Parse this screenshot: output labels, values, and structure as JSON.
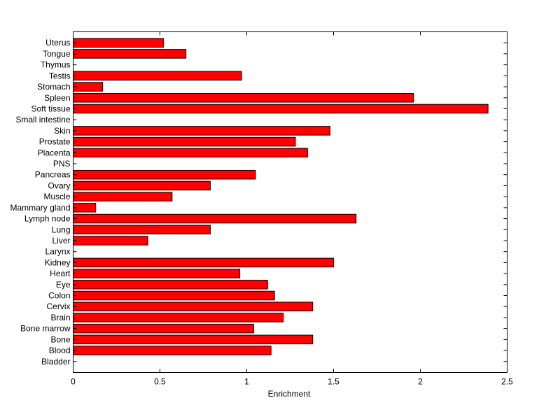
{
  "chart_data": {
    "type": "bar",
    "orientation": "horizontal",
    "title": "",
    "xlabel": "Enrichment",
    "ylabel": "",
    "xlim": [
      0,
      2.5
    ],
    "xticks": [
      "0",
      "0.5",
      "1",
      "1.5",
      "2",
      "2.5"
    ],
    "grid": false,
    "categories": [
      "Bladder",
      "Blood",
      "Bone",
      "Bone marrow",
      "Brain",
      "Cervix",
      "Colon",
      "Eye",
      "Heart",
      "Kidney",
      "Larynx",
      "Liver",
      "Lung",
      "Lymph node",
      "Mammary gland",
      "Muscle",
      "Ovary",
      "Pancreas",
      "PNS",
      "Placenta",
      "Prostate",
      "Skin",
      "Small intestine",
      "Soft tissue",
      "Spleen",
      "Stomach",
      "Testis",
      "Thymus",
      "Tongue",
      "Uterus"
    ],
    "values": [
      0,
      1.14,
      1.38,
      1.04,
      1.21,
      1.38,
      1.16,
      1.12,
      0.96,
      1.5,
      0,
      0.43,
      0.79,
      1.63,
      0.13,
      0.57,
      0.79,
      1.05,
      0,
      1.35,
      1.28,
      1.48,
      0,
      2.39,
      1.96,
      0.17,
      0.97,
      0,
      0.65,
      0.52
    ],
    "bar_color": "#ff0000",
    "bar_edge_color": "#000000"
  }
}
